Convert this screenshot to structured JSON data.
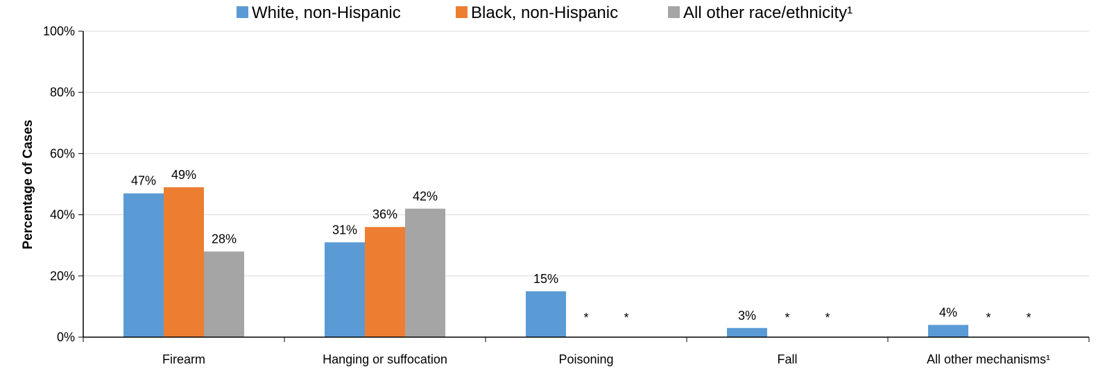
{
  "chart_data": {
    "type": "bar",
    "title": "",
    "xlabel": "",
    "ylabel": "Percentage of Cases",
    "ylim": [
      0,
      100
    ],
    "y_ticks": [
      "0%",
      "20%",
      "40%",
      "60%",
      "80%",
      "100%"
    ],
    "y_tick_values": [
      0,
      20,
      40,
      60,
      80,
      100
    ],
    "grid": true,
    "legend_position": "top",
    "categories": [
      "Firearm",
      "Hanging or suffocation",
      "Poisoning",
      "Fall",
      "All other mechanisms¹"
    ],
    "series": [
      {
        "name": "White, non-Hispanic",
        "color": "#5B9BD5",
        "values": [
          47,
          31,
          15,
          3,
          4
        ],
        "labels": [
          "47%",
          "31%",
          "15%",
          "3%",
          "4%"
        ]
      },
      {
        "name": "Black, non-Hispanic",
        "color": "#ED7D31",
        "values": [
          49,
          36,
          null,
          null,
          null
        ],
        "labels": [
          "49%",
          "36%",
          "*",
          "*",
          "*"
        ]
      },
      {
        "name": "All other race/ethnicity¹",
        "color": "#A5A5A5",
        "values": [
          28,
          42,
          null,
          null,
          null
        ],
        "labels": [
          "28%",
          "42%",
          "*",
          "*",
          "*"
        ]
      }
    ]
  }
}
